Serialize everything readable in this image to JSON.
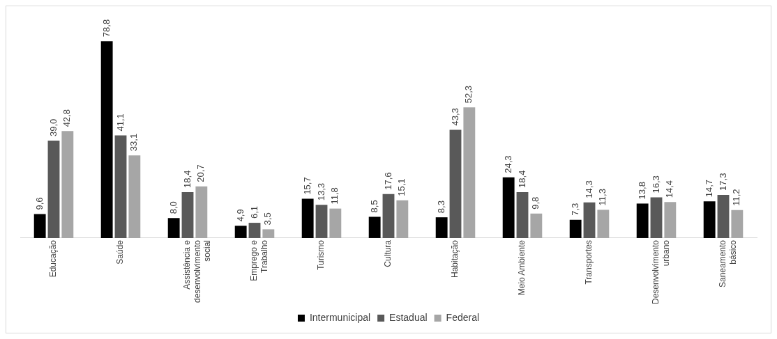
{
  "chart_data": {
    "type": "bar",
    "categories": [
      "Educação",
      "Saúde",
      "Assistência e desenvolvimento social",
      "Emprego e Trabalho",
      "Turismo",
      "Cultura",
      "Habitação",
      "Meio Ambiente",
      "Transportes",
      "Desenvolvimento urbano",
      "Saneamento básico"
    ],
    "series": [
      {
        "name": "Intermunicipal",
        "color": "#000000",
        "values": [
          9.6,
          78.8,
          8.0,
          4.9,
          15.7,
          8.5,
          8.3,
          24.3,
          7.3,
          13.8,
          14.7
        ],
        "value_labels": [
          "9,6",
          "78,8",
          "8,0",
          "4,9",
          "15,7",
          "8,5",
          "8,3",
          "24,3",
          "7,3",
          "13,8",
          "14,7"
        ]
      },
      {
        "name": "Estadual",
        "color": "#595959",
        "values": [
          39.0,
          41.1,
          18.4,
          6.1,
          13.3,
          17.6,
          43.3,
          18.4,
          14.3,
          16.3,
          17.3
        ],
        "value_labels": [
          "39,0",
          "41,1",
          "18,4",
          "6,1",
          "13,3",
          "17,6",
          "43,3",
          "18,4",
          "14,3",
          "16,3",
          "17,3"
        ]
      },
      {
        "name": "Federal",
        "color": "#a6a6a6",
        "values": [
          42.8,
          33.1,
          20.7,
          3.5,
          11.8,
          15.1,
          52.3,
          9.8,
          11.3,
          14.4,
          11.2
        ],
        "value_labels": [
          "42,8",
          "33,1",
          "20,7",
          "3,5",
          "11,8",
          "15,1",
          "52,3",
          "9,8",
          "11,3",
          "14,4",
          "11,2"
        ]
      }
    ],
    "tick_labels": "x",
    "grid": false,
    "legend": "bottom"
  }
}
